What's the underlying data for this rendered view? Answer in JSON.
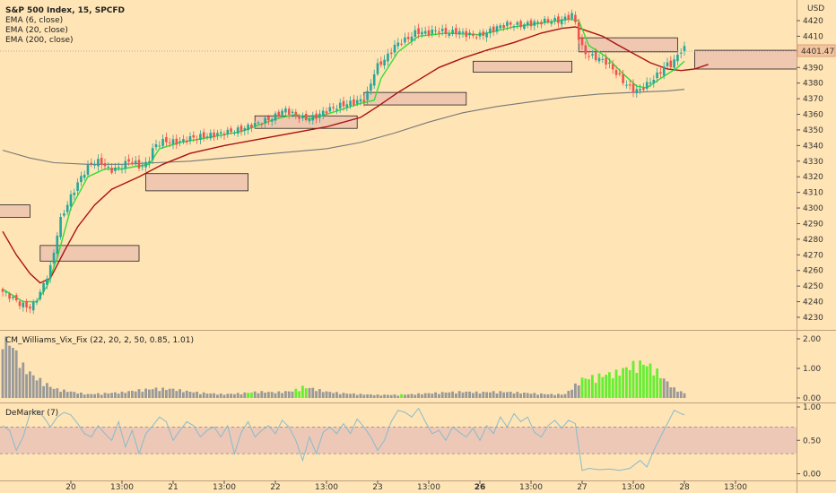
{
  "chart_data": {
    "type": "candlestick",
    "symbol_title": "S&P 500 Index, 15, SPCFD",
    "currency": "USD",
    "last_price_label": "4401.47",
    "overlays": [
      {
        "name": "EMA (6, close)",
        "color": "#33dd33"
      },
      {
        "name": "EMA (20, close)",
        "color": "#aa1111"
      },
      {
        "name": "EMA (200, close)",
        "color": "#777777"
      }
    ],
    "price_axis": {
      "min": 4225,
      "max": 4430,
      "ticks": [
        4420,
        4410,
        4400,
        4390,
        4380,
        4370,
        4360,
        4350,
        4340,
        4330,
        4320,
        4310,
        4300,
        4290,
        4280,
        4270,
        4260,
        4250,
        4240,
        4230
      ]
    },
    "time_axis": {
      "ticks": [
        {
          "label": "20",
          "bar": 20,
          "bold": false
        },
        {
          "label": "13:00",
          "bar": 35,
          "bold": false
        },
        {
          "label": "21",
          "bar": 50,
          "bold": false
        },
        {
          "label": "13:00",
          "bar": 65,
          "bold": false
        },
        {
          "label": "22",
          "bar": 80,
          "bold": false
        },
        {
          "label": "13:00",
          "bar": 95,
          "bold": false
        },
        {
          "label": "23",
          "bar": 110,
          "bold": false
        },
        {
          "label": "13:00",
          "bar": 125,
          "bold": false
        },
        {
          "label": "26",
          "bar": 140,
          "bold": true
        },
        {
          "label": "13:00",
          "bar": 155,
          "bold": false
        },
        {
          "label": "27",
          "bar": 170,
          "bold": false
        },
        {
          "label": "13:00",
          "bar": 185,
          "bold": false
        },
        {
          "label": "28",
          "bar": 200,
          "bold": false
        },
        {
          "label": "13:00",
          "bar": 215,
          "bold": false
        }
      ]
    },
    "price_path": [
      [
        0,
        4247
      ],
      [
        3,
        4243
      ],
      [
        6,
        4238
      ],
      [
        9,
        4236
      ],
      [
        12,
        4248
      ],
      [
        15,
        4265
      ],
      [
        17,
        4290
      ],
      [
        20,
        4305
      ],
      [
        23,
        4318
      ],
      [
        26,
        4328
      ],
      [
        29,
        4330
      ],
      [
        32,
        4324
      ],
      [
        35,
        4326
      ],
      [
        38,
        4331
      ],
      [
        41,
        4326
      ],
      [
        43,
        4329
      ],
      [
        45,
        4340
      ],
      [
        48,
        4343
      ],
      [
        52,
        4342
      ],
      [
        56,
        4345
      ],
      [
        60,
        4346
      ],
      [
        65,
        4348
      ],
      [
        70,
        4350
      ],
      [
        75,
        4354
      ],
      [
        80,
        4358
      ],
      [
        83,
        4363
      ],
      [
        86,
        4360
      ],
      [
        89,
        4357
      ],
      [
        92,
        4358
      ],
      [
        95,
        4362
      ],
      [
        100,
        4366
      ],
      [
        104,
        4368
      ],
      [
        107,
        4370
      ],
      [
        110,
        4390
      ],
      [
        113,
        4396
      ],
      [
        116,
        4405
      ],
      [
        119,
        4408
      ],
      [
        122,
        4413
      ],
      [
        125,
        4412
      ],
      [
        128,
        4414
      ],
      [
        131,
        4412
      ],
      [
        134,
        4413
      ],
      [
        137,
        4411
      ],
      [
        140,
        4410
      ],
      [
        143,
        4413
      ],
      [
        146,
        4416
      ],
      [
        149,
        4418
      ],
      [
        152,
        4417
      ],
      [
        155,
        4418
      ],
      [
        158,
        4419
      ],
      [
        161,
        4420
      ],
      [
        164,
        4420
      ],
      [
        166,
        4422
      ],
      [
        168,
        4424
      ],
      [
        170,
        4404
      ],
      [
        172,
        4398
      ],
      [
        175,
        4396
      ],
      [
        178,
        4393
      ],
      [
        181,
        4385
      ],
      [
        183,
        4380
      ],
      [
        185,
        4376
      ],
      [
        187,
        4375
      ],
      [
        189,
        4378
      ],
      [
        191,
        4382
      ],
      [
        193,
        4386
      ],
      [
        195,
        4392
      ],
      [
        197,
        4392
      ],
      [
        199,
        4400
      ],
      [
        200,
        4402
      ]
    ],
    "ema6": [
      [
        0,
        4248
      ],
      [
        6,
        4240
      ],
      [
        10,
        4240
      ],
      [
        13,
        4250
      ],
      [
        16,
        4268
      ],
      [
        20,
        4300
      ],
      [
        25,
        4320
      ],
      [
        30,
        4325
      ],
      [
        35,
        4325
      ],
      [
        40,
        4327
      ],
      [
        43,
        4328
      ],
      [
        46,
        4338
      ],
      [
        52,
        4342
      ],
      [
        60,
        4345
      ],
      [
        70,
        4349
      ],
      [
        80,
        4357
      ],
      [
        86,
        4360
      ],
      [
        90,
        4357
      ],
      [
        95,
        4360
      ],
      [
        105,
        4367
      ],
      [
        109,
        4369
      ],
      [
        111,
        4383
      ],
      [
        116,
        4400
      ],
      [
        122,
        4410
      ],
      [
        130,
        4412
      ],
      [
        140,
        4411
      ],
      [
        150,
        4416
      ],
      [
        160,
        4419
      ],
      [
        166,
        4421
      ],
      [
        169,
        4420
      ],
      [
        172,
        4404
      ],
      [
        177,
        4397
      ],
      [
        182,
        4386
      ],
      [
        186,
        4378
      ],
      [
        189,
        4377
      ],
      [
        193,
        4383
      ],
      [
        198,
        4390
      ],
      [
        200,
        4394
      ]
    ],
    "ema20": [
      [
        0,
        4285
      ],
      [
        4,
        4270
      ],
      [
        8,
        4258
      ],
      [
        11,
        4252
      ],
      [
        14,
        4255
      ],
      [
        18,
        4272
      ],
      [
        22,
        4288
      ],
      [
        27,
        4302
      ],
      [
        32,
        4312
      ],
      [
        40,
        4320
      ],
      [
        47,
        4328
      ],
      [
        55,
        4335
      ],
      [
        65,
        4340
      ],
      [
        75,
        4344
      ],
      [
        85,
        4348
      ],
      [
        95,
        4352
      ],
      [
        105,
        4358
      ],
      [
        110,
        4365
      ],
      [
        116,
        4374
      ],
      [
        122,
        4382
      ],
      [
        128,
        4390
      ],
      [
        135,
        4396
      ],
      [
        142,
        4401
      ],
      [
        150,
        4406
      ],
      [
        158,
        4412
      ],
      [
        164,
        4415
      ],
      [
        168,
        4416
      ],
      [
        172,
        4413
      ],
      [
        176,
        4410
      ],
      [
        180,
        4405
      ],
      [
        185,
        4399
      ],
      [
        190,
        4393
      ],
      [
        195,
        4389
      ],
      [
        199,
        4388
      ],
      [
        203,
        4389
      ],
      [
        207,
        4392
      ]
    ],
    "ema200": [
      [
        0,
        4337
      ],
      [
        8,
        4332
      ],
      [
        15,
        4329
      ],
      [
        25,
        4328
      ],
      [
        35,
        4328
      ],
      [
        45,
        4329
      ],
      [
        55,
        4330
      ],
      [
        65,
        4332
      ],
      [
        75,
        4334
      ],
      [
        85,
        4336
      ],
      [
        95,
        4338
      ],
      [
        105,
        4342
      ],
      [
        115,
        4348
      ],
      [
        125,
        4355
      ],
      [
        135,
        4361
      ],
      [
        145,
        4365
      ],
      [
        155,
        4368
      ],
      [
        165,
        4371
      ],
      [
        175,
        4373
      ],
      [
        185,
        4374
      ],
      [
        195,
        4375
      ],
      [
        200,
        4376
      ]
    ],
    "zones": [
      {
        "b0": -5,
        "b1": 8,
        "top": 4302,
        "bottom": 4294
      },
      {
        "b0": 11,
        "b1": 40,
        "top": 4276,
        "bottom": 4266
      },
      {
        "b0": 42,
        "b1": 72,
        "top": 4322,
        "bottom": 4311
      },
      {
        "b0": 74,
        "b1": 104,
        "top": 4359,
        "bottom": 4351
      },
      {
        "b0": 106,
        "b1": 136,
        "top": 4374,
        "bottom": 4366
      },
      {
        "b0": 138,
        "b1": 167,
        "top": 4394,
        "bottom": 4387
      },
      {
        "b0": 169,
        "b1": 198,
        "top": 4409,
        "bottom": 4400
      },
      {
        "b0": 203,
        "b1": 233,
        "top": 4401,
        "bottom": 4389
      }
    ],
    "vix": {
      "title": "CM_Williams_Vix_Fix (22, 20, 2, 50, 0.85, 1.01)",
      "axis": {
        "min": 0,
        "max": 2.1,
        "ticks": [
          2.0,
          1.0,
          0.0
        ],
        "labels": [
          "2.00",
          "1.00",
          "0.00"
        ]
      },
      "highlight_color": "#66ee33",
      "base_color": "#999999",
      "profile": [
        [
          0,
          2.2
        ],
        [
          3,
          1.6
        ],
        [
          6,
          1.0
        ],
        [
          9,
          0.7
        ],
        [
          12,
          0.5
        ],
        [
          15,
          0.3
        ],
        [
          20,
          0.2
        ],
        [
          25,
          0.12
        ],
        [
          30,
          0.15
        ],
        [
          35,
          0.18
        ],
        [
          40,
          0.25
        ],
        [
          45,
          0.3
        ],
        [
          50,
          0.28
        ],
        [
          55,
          0.2
        ],
        [
          60,
          0.15
        ],
        [
          65,
          0.12
        ],
        [
          70,
          0.15
        ],
        [
          75,
          0.2
        ],
        [
          80,
          0.18
        ],
        [
          85,
          0.22
        ],
        [
          88,
          0.35
        ],
        [
          91,
          0.3
        ],
        [
          95,
          0.2
        ],
        [
          100,
          0.15
        ],
        [
          105,
          0.12
        ],
        [
          110,
          0.1
        ],
        [
          115,
          0.1
        ],
        [
          120,
          0.12
        ],
        [
          125,
          0.15
        ],
        [
          130,
          0.18
        ],
        [
          135,
          0.2
        ],
        [
          140,
          0.18
        ],
        [
          145,
          0.2
        ],
        [
          150,
          0.18
        ],
        [
          155,
          0.15
        ],
        [
          160,
          0.12
        ],
        [
          165,
          0.12
        ],
        [
          170,
          0.6
        ],
        [
          175,
          0.7
        ],
        [
          180,
          0.8
        ],
        [
          185,
          1.05
        ],
        [
          188,
          1.1
        ],
        [
          191,
          0.95
        ],
        [
          194,
          0.6
        ],
        [
          197,
          0.3
        ],
        [
          200,
          0.15
        ]
      ],
      "highlight_bars": [
        [
          72,
          73
        ],
        [
          86,
          89
        ],
        [
          117,
          117
        ],
        [
          170,
          193
        ]
      ]
    },
    "demarker": {
      "title": "DeMarker (7)",
      "axis": {
        "min": -0.05,
        "max": 1.05,
        "ticks": [
          1.0,
          0.5,
          0.0
        ],
        "labels": [
          "1.00",
          "0.50",
          "0.00"
        ]
      },
      "band": [
        0.3,
        0.7
      ],
      "line_color": "#88bbcc",
      "series": [
        [
          0,
          0.72
        ],
        [
          2,
          0.65
        ],
        [
          4,
          0.35
        ],
        [
          6,
          0.55
        ],
        [
          8,
          0.9
        ],
        [
          10,
          0.95
        ],
        [
          12,
          0.85
        ],
        [
          14,
          0.7
        ],
        [
          16,
          0.85
        ],
        [
          18,
          0.92
        ],
        [
          20,
          0.88
        ],
        [
          22,
          0.75
        ],
        [
          24,
          0.6
        ],
        [
          26,
          0.55
        ],
        [
          28,
          0.72
        ],
        [
          30,
          0.6
        ],
        [
          32,
          0.5
        ],
        [
          34,
          0.78
        ],
        [
          36,
          0.4
        ],
        [
          38,
          0.65
        ],
        [
          40,
          0.3
        ],
        [
          42,
          0.6
        ],
        [
          44,
          0.72
        ],
        [
          46,
          0.85
        ],
        [
          48,
          0.78
        ],
        [
          50,
          0.5
        ],
        [
          52,
          0.65
        ],
        [
          54,
          0.78
        ],
        [
          56,
          0.72
        ],
        [
          58,
          0.55
        ],
        [
          60,
          0.65
        ],
        [
          62,
          0.7
        ],
        [
          64,
          0.55
        ],
        [
          66,
          0.72
        ],
        [
          68,
          0.3
        ],
        [
          70,
          0.62
        ],
        [
          72,
          0.78
        ],
        [
          74,
          0.55
        ],
        [
          76,
          0.65
        ],
        [
          78,
          0.72
        ],
        [
          80,
          0.6
        ],
        [
          82,
          0.8
        ],
        [
          84,
          0.7
        ],
        [
          86,
          0.5
        ],
        [
          88,
          0.2
        ],
        [
          90,
          0.55
        ],
        [
          92,
          0.3
        ],
        [
          94,
          0.62
        ],
        [
          96,
          0.7
        ],
        [
          98,
          0.6
        ],
        [
          100,
          0.75
        ],
        [
          102,
          0.6
        ],
        [
          104,
          0.82
        ],
        [
          106,
          0.7
        ],
        [
          108,
          0.55
        ],
        [
          110,
          0.35
        ],
        [
          112,
          0.5
        ],
        [
          114,
          0.78
        ],
        [
          116,
          0.95
        ],
        [
          118,
          0.92
        ],
        [
          120,
          0.85
        ],
        [
          122,
          0.98
        ],
        [
          124,
          0.78
        ],
        [
          126,
          0.6
        ],
        [
          128,
          0.65
        ],
        [
          130,
          0.5
        ],
        [
          132,
          0.7
        ],
        [
          134,
          0.62
        ],
        [
          136,
          0.55
        ],
        [
          138,
          0.68
        ],
        [
          140,
          0.5
        ],
        [
          142,
          0.72
        ],
        [
          144,
          0.6
        ],
        [
          146,
          0.85
        ],
        [
          148,
          0.7
        ],
        [
          150,
          0.9
        ],
        [
          152,
          0.78
        ],
        [
          154,
          0.85
        ],
        [
          156,
          0.62
        ],
        [
          158,
          0.55
        ],
        [
          160,
          0.72
        ],
        [
          162,
          0.8
        ],
        [
          164,
          0.68
        ],
        [
          166,
          0.8
        ],
        [
          168,
          0.75
        ],
        [
          170,
          0.05
        ],
        [
          172,
          0.08
        ],
        [
          175,
          0.06
        ],
        [
          178,
          0.07
        ],
        [
          181,
          0.05
        ],
        [
          184,
          0.08
        ],
        [
          187,
          0.2
        ],
        [
          189,
          0.1
        ],
        [
          191,
          0.35
        ],
        [
          193,
          0.55
        ],
        [
          195,
          0.75
        ],
        [
          197,
          0.95
        ],
        [
          199,
          0.9
        ],
        [
          200,
          0.88
        ]
      ]
    }
  }
}
